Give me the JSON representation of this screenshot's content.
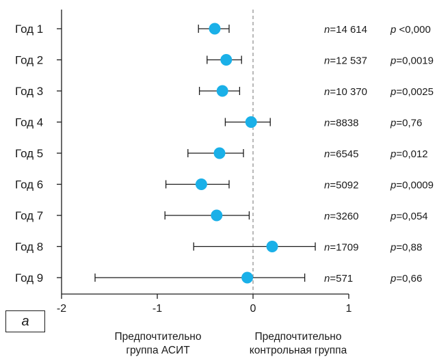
{
  "chart_data": {
    "type": "forest",
    "panel_label": "а",
    "rows": [
      {
        "label": "Год 1",
        "estimate": -0.4,
        "ci_low": -0.57,
        "ci_high": -0.25,
        "n": "14 614",
        "p": "<0,000"
      },
      {
        "label": "Год 2",
        "estimate": -0.28,
        "ci_low": -0.48,
        "ci_high": -0.12,
        "n": "12 537",
        "p": "0,0019"
      },
      {
        "label": "Год 3",
        "estimate": -0.32,
        "ci_low": -0.56,
        "ci_high": -0.14,
        "n": "10 370",
        "p": "0,0025"
      },
      {
        "label": "Год 4",
        "estimate": -0.02,
        "ci_low": -0.29,
        "ci_high": 0.18,
        "n": "8838",
        "p": "0,76"
      },
      {
        "label": "Год 5",
        "estimate": -0.35,
        "ci_low": -0.68,
        "ci_high": -0.1,
        "n": "6545",
        "p": "0,012"
      },
      {
        "label": "Год 6",
        "estimate": -0.54,
        "ci_low": -0.91,
        "ci_high": -0.25,
        "n": "5092",
        "p": "0,0009"
      },
      {
        "label": "Год 7",
        "estimate": -0.38,
        "ci_low": -0.92,
        "ci_high": -0.04,
        "n": "3260",
        "p": "0,054"
      },
      {
        "label": "Год 8",
        "estimate": 0.2,
        "ci_low": -0.62,
        "ci_high": 0.65,
        "n": "1709",
        "p": "0,88"
      },
      {
        "label": "Год 9",
        "estimate": -0.06,
        "ci_low": -1.65,
        "ci_high": 0.54,
        "n": "571",
        "p": "0,66"
      }
    ],
    "x_ticks": [
      "-2",
      "-1",
      "0",
      "1"
    ],
    "x_tick_values": [
      -2,
      -1,
      0,
      1
    ],
    "xlim": [
      -2,
      1
    ],
    "reference_line": 0,
    "left_caption": [
      "Предпочтительно",
      "группа АСИТ"
    ],
    "right_caption": [
      "Предпочтительно",
      "контрольная группа"
    ],
    "n_prefix": "n=",
    "p_prefix": "p",
    "colors": {
      "point": "#1ab0e8",
      "line": "#1a1a1a",
      "reference": "#888888"
    }
  }
}
